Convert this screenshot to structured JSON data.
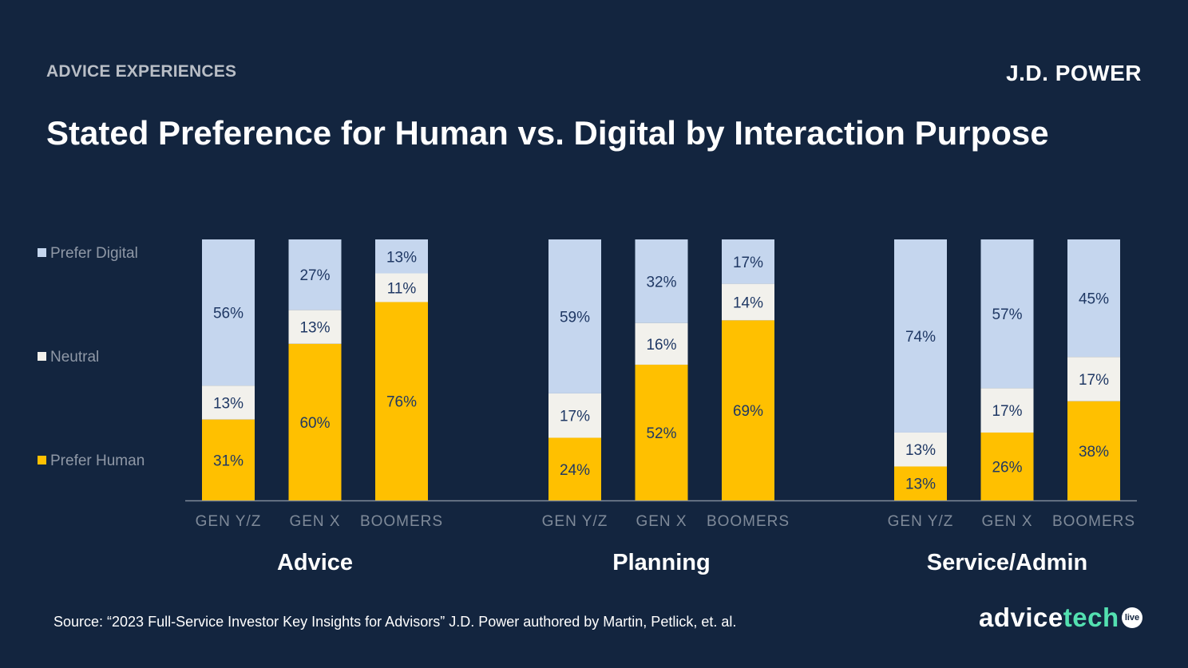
{
  "header": {
    "section_label": "ADVICE EXPERIENCES",
    "brand": "J.D. POWER",
    "title": "Stated Preference for Human vs. Digital by Interaction Purpose"
  },
  "footer": {
    "source": "Source: “2023 Full-Service Investor Key Insights for Advisors”  J.D. Power authored by Martin, Petlick, et. al.",
    "logo_part1": "advice",
    "logo_part2": "tech",
    "logo_badge": "live"
  },
  "colors": {
    "prefer_human": "#ffc000",
    "neutral": "#f2f1ec",
    "prefer_digital": "#c5d6ee",
    "label_dark": "#1f3864",
    "background": "#13253f"
  },
  "chart_data": {
    "type": "bar",
    "stacked": true,
    "unit": "%",
    "legend": [
      "Prefer Digital",
      "Neutral",
      "Prefer Human"
    ],
    "legend_position": "left",
    "groups": [
      {
        "name": "Advice",
        "categories": [
          "GEN Y/Z",
          "GEN X",
          "BOOMERS"
        ],
        "series": [
          {
            "name": "Prefer Human",
            "values": [
              31,
              60,
              76
            ]
          },
          {
            "name": "Neutral",
            "values": [
              13,
              13,
              11
            ]
          },
          {
            "name": "Prefer Digital",
            "values": [
              56,
              27,
              13
            ]
          }
        ]
      },
      {
        "name": "Planning",
        "categories": [
          "GEN Y/Z",
          "GEN X",
          "BOOMERS"
        ],
        "series": [
          {
            "name": "Prefer Human",
            "values": [
              24,
              52,
              69
            ]
          },
          {
            "name": "Neutral",
            "values": [
              17,
              16,
              14
            ]
          },
          {
            "name": "Prefer Digital",
            "values": [
              59,
              32,
              17
            ]
          }
        ]
      },
      {
        "name": "Service/Admin",
        "categories": [
          "GEN Y/Z",
          "GEN X",
          "BOOMERS"
        ],
        "series": [
          {
            "name": "Prefer Human",
            "values": [
              13,
              26,
              38
            ]
          },
          {
            "name": "Neutral",
            "values": [
              13,
              17,
              17
            ]
          },
          {
            "name": "Prefer Digital",
            "values": [
              74,
              57,
              45
            ]
          }
        ]
      }
    ]
  }
}
